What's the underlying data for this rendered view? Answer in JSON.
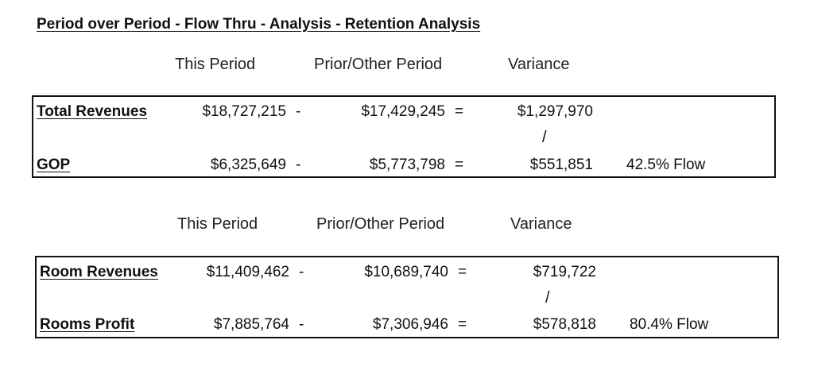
{
  "title": "Period over Period - Flow Thru - Analysis - Retention Analysis",
  "sections": [
    {
      "headers": {
        "this_period": "This Period",
        "prior_period": "Prior/Other Period",
        "variance": "Variance"
      },
      "rows": [
        {
          "label": "Total Revenues",
          "this_period": "$18,727,215",
          "minus": "-",
          "prior_period": "$17,429,245",
          "equals": "=",
          "variance": "$1,297,970",
          "flow": ""
        },
        {
          "label": "GOP",
          "this_period": "$6,325,649",
          "minus": "-",
          "prior_period": "$5,773,798",
          "equals": "=",
          "variance": "$551,851",
          "flow": "42.5% Flow"
        }
      ],
      "divider": "/"
    },
    {
      "headers": {
        "this_period": "This Period",
        "prior_period": "Prior/Other Period",
        "variance": "Variance"
      },
      "rows": [
        {
          "label": "Room Revenues",
          "this_period": "$11,409,462",
          "minus": "-",
          "prior_period": "$10,689,740",
          "equals": "=",
          "variance": "$719,722",
          "flow": ""
        },
        {
          "label": "Rooms Profit",
          "this_period": "$7,885,764",
          "minus": "-",
          "prior_period": "$7,306,946",
          "equals": "=",
          "variance": "$578,818",
          "flow": "80.4% Flow"
        }
      ],
      "divider": "/"
    }
  ]
}
